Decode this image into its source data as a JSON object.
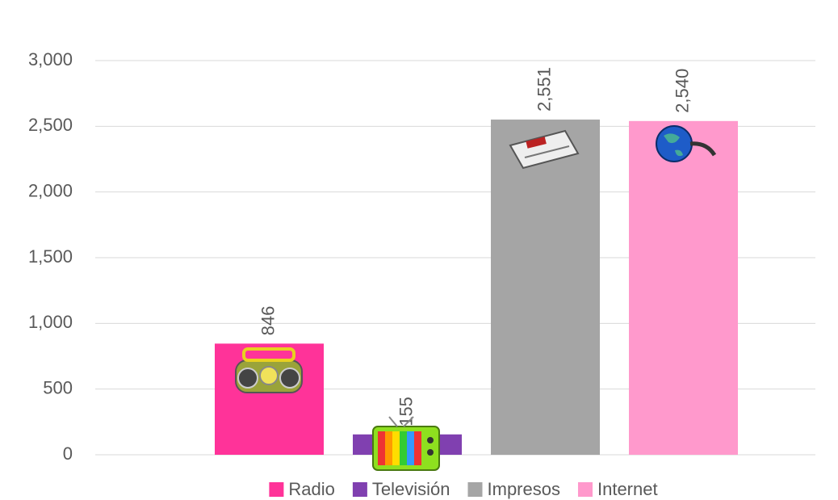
{
  "chart_data": {
    "type": "bar",
    "categories": [
      null
    ],
    "series": [
      {
        "name": "Radio",
        "color": "#ff3399",
        "values": [
          846
        ]
      },
      {
        "name": "Televisión",
        "color": "#8040b0",
        "values": [
          155
        ]
      },
      {
        "name": "Impresos",
        "color": "#a5a5a5",
        "values": [
          2551
        ],
        "value_labels": [
          "2,551"
        ]
      },
      {
        "name": "Internet",
        "color": "#ff99cc",
        "values": [
          2540
        ],
        "value_labels": [
          "2,540"
        ]
      }
    ],
    "ylim": [
      0,
      3000
    ],
    "yticks": [
      0,
      500,
      {
        "value": 1000,
        "label": "1,000"
      },
      {
        "value": 1500,
        "label": "1,500"
      },
      {
        "value": 2000,
        "label": "2,000"
      },
      {
        "value": 2500,
        "label": "2,500"
      },
      {
        "value": 3000,
        "label": "3,000"
      }
    ],
    "grid": true,
    "legend": "bottom"
  }
}
